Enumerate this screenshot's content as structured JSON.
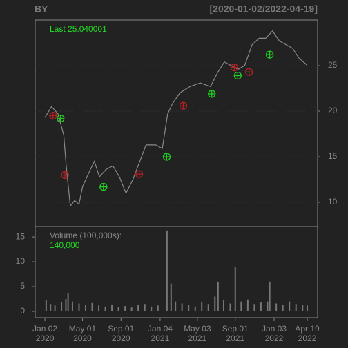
{
  "chart_data": [
    {
      "type": "line",
      "title": "BY",
      "subtitle": "[2020-01-02/2022-04-19]",
      "annotation": "Last 25.040001",
      "annotation_color": "#22dd22",
      "color": "#8a8a8a",
      "x": [
        "2020-01-02",
        "2020-01-23",
        "2020-02-13",
        "2020-03-02",
        "2020-03-10",
        "2020-03-23",
        "2020-04-06",
        "2020-04-20",
        "2020-05-01",
        "2020-05-22",
        "2020-06-08",
        "2020-06-24",
        "2020-07-15",
        "2020-08-06",
        "2020-08-27",
        "2020-09-17",
        "2020-10-09",
        "2020-10-30",
        "2020-11-20",
        "2020-12-21",
        "2021-01-11",
        "2021-01-28",
        "2021-02-12",
        "2021-03-08",
        "2021-04-09",
        "2021-05-12",
        "2021-06-14",
        "2021-07-06",
        "2021-07-28",
        "2021-08-19",
        "2021-09-10",
        "2021-10-01",
        "2021-10-25",
        "2021-11-16",
        "2021-12-07",
        "2021-12-29",
        "2022-01-20",
        "2022-02-10",
        "2022-03-03",
        "2022-03-24",
        "2022-04-19"
      ],
      "values": [
        19.3,
        20.5,
        19.7,
        17.4,
        14.0,
        9.6,
        10.2,
        9.8,
        11.7,
        13.3,
        14.5,
        12.8,
        13.6,
        14.0,
        12.8,
        11.0,
        12.5,
        14.4,
        16.3,
        16.3,
        15.9,
        19.7,
        20.8,
        22.0,
        22.7,
        23.1,
        22.7,
        24.2,
        25.4,
        25.0,
        24.6,
        25.0,
        27.3,
        28.0,
        28.0,
        28.8,
        27.7,
        27.3,
        26.9,
        25.8,
        25.04
      ],
      "markers": [
        {
          "color": "#b22222",
          "x": [
            "2020-01-28",
            "2020-03-06",
            "2020-10-29",
            "2021-03-19",
            "2021-08-29",
            "2021-10-15"
          ],
          "values": [
            19.5,
            13.0,
            13.1,
            20.6,
            24.8,
            24.3
          ]
        },
        {
          "color": "#22cc22",
          "x": [
            "2020-02-21",
            "2020-07-07",
            "2021-01-25",
            "2021-06-18",
            "2021-09-09",
            "2021-12-20"
          ],
          "values": [
            19.2,
            11.7,
            15.0,
            21.9,
            23.9,
            26.2
          ]
        }
      ],
      "xlim": [
        "2019-12-02",
        "2022-05-22"
      ],
      "ylim": [
        7.35,
        30
      ],
      "yticks": [
        10,
        15,
        20,
        25
      ],
      "grid": true
    },
    {
      "type": "bar",
      "title": "Volume (100,000s):",
      "annotation": "140,000",
      "annotation_color": "#22dd22",
      "color": "#777777",
      "x": [
        "2020-01-06",
        "2020-01-20",
        "2020-02-03",
        "2020-02-24",
        "2020-03-09",
        "2020-03-16",
        "2020-03-30",
        "2020-04-20",
        "2020-05-11",
        "2020-06-01",
        "2020-06-22",
        "2020-07-13",
        "2020-08-03",
        "2020-08-24",
        "2020-09-14",
        "2020-10-05",
        "2020-10-26",
        "2020-11-16",
        "2020-12-07",
        "2020-12-28",
        "2021-01-26",
        "2021-02-08",
        "2021-02-22",
        "2021-03-15",
        "2021-04-05",
        "2021-04-26",
        "2021-05-17",
        "2021-06-07",
        "2021-06-28",
        "2021-07-08",
        "2021-07-26",
        "2021-08-16",
        "2021-09-01",
        "2021-09-20",
        "2021-10-11",
        "2021-11-01",
        "2021-11-22",
        "2021-12-13",
        "2021-12-20",
        "2022-01-10",
        "2022-01-31",
        "2022-02-21",
        "2022-03-14",
        "2022-04-04",
        "2022-04-19"
      ],
      "values": [
        2.2,
        1.5,
        1.2,
        1.8,
        2.5,
        3.6,
        2.0,
        1.6,
        1.3,
        1.7,
        1.2,
        1.0,
        1.4,
        0.9,
        1.1,
        0.8,
        1.3,
        1.5,
        1.0,
        1.2,
        16.3,
        5.6,
        2.0,
        1.6,
        1.3,
        1.0,
        1.8,
        1.5,
        3.0,
        6.0,
        2.2,
        1.6,
        9.0,
        2.0,
        2.4,
        1.5,
        1.8,
        2.0,
        6.0,
        1.6,
        1.4,
        2.0,
        1.5,
        1.3,
        1.2
      ],
      "xlim": [
        "2019-12-02",
        "2022-05-22"
      ],
      "ylim": [
        -1.25,
        17.1
      ],
      "yticks": [
        0,
        5,
        10,
        15
      ],
      "xticks": [
        {
          "value": "2020-01-02",
          "label": "Jan 02\n2020"
        },
        {
          "value": "2020-05-01",
          "label": "May 01\n2020"
        },
        {
          "value": "2020-09-01",
          "label": "Sep 01\n2020"
        },
        {
          "value": "2021-01-04",
          "label": "Jan 04\n2021"
        },
        {
          "value": "2021-05-03",
          "label": "May 03\n2021"
        },
        {
          "value": "2021-09-01",
          "label": "Sep 01\n2021"
        },
        {
          "value": "2022-01-03",
          "label": "Jan 03\n2022"
        },
        {
          "value": "2022-04-19",
          "label": "Apr 19\n2022"
        }
      ]
    }
  ]
}
